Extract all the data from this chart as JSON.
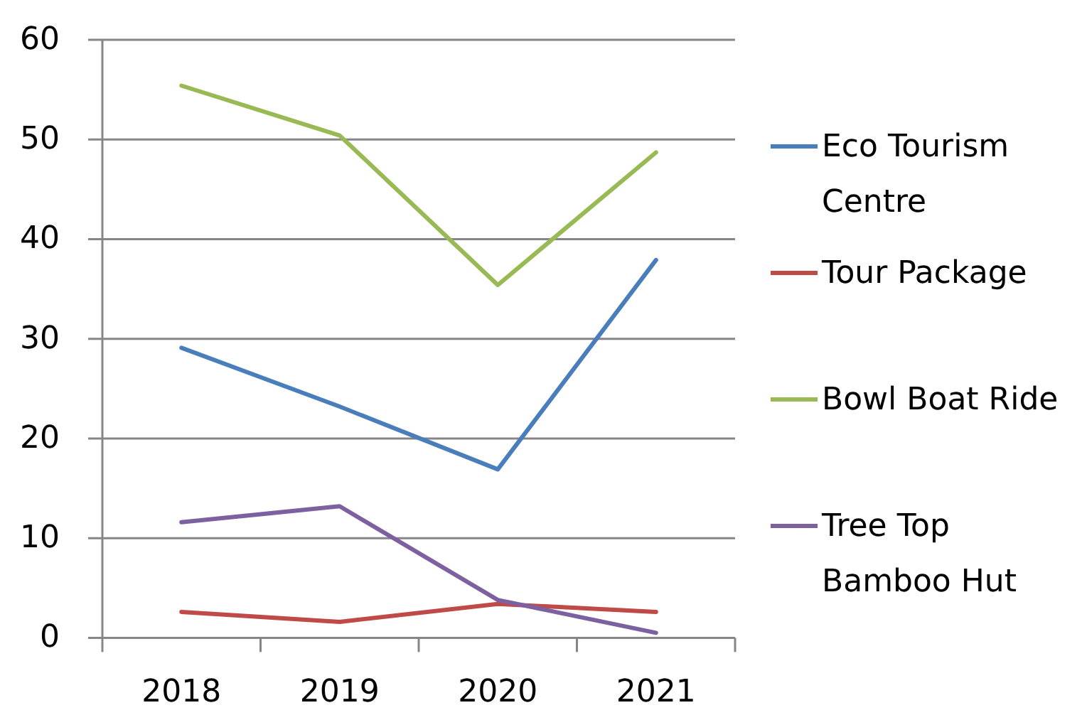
{
  "chart_data": {
    "type": "line",
    "categories": [
      "2018",
      "2019",
      "2020",
      "2021"
    ],
    "series": [
      {
        "name": "Eco Tourism Centre",
        "color": "#4a7ebb",
        "values": [
          29.1,
          23.2,
          16.9,
          37.9
        ]
      },
      {
        "name": "Tour Package",
        "color": "#be4b48",
        "values": [
          2.6,
          1.6,
          3.4,
          2.6
        ]
      },
      {
        "name": "Bowl Boat Ride",
        "color": "#98b954",
        "values": [
          55.4,
          50.4,
          35.4,
          48.7
        ]
      },
      {
        "name": "Tree Top Bamboo Hut",
        "color": "#7d60a0",
        "values": [
          11.6,
          13.2,
          3.8,
          0.5
        ]
      }
    ],
    "ylim": [
      0,
      60
    ],
    "yticks": [
      0,
      10,
      20,
      30,
      40,
      50,
      60
    ],
    "grid": "y",
    "legend": "right",
    "line_style": "solid"
  }
}
